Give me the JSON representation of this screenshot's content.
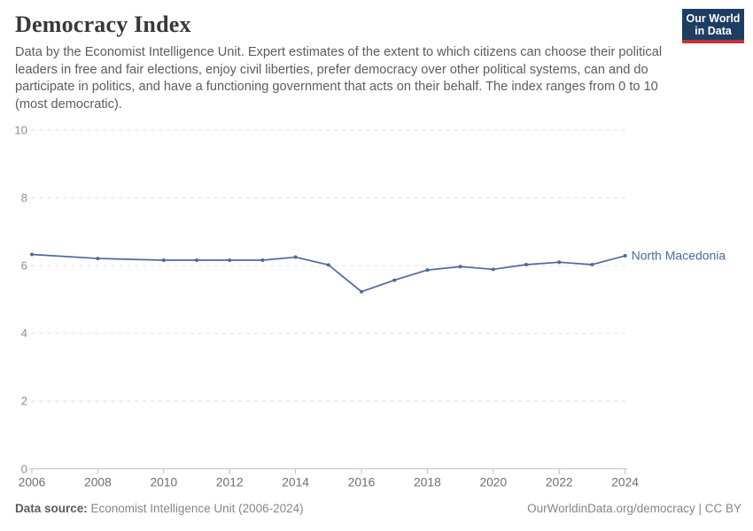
{
  "header": {
    "title": "Democracy Index",
    "subtitle": "Data by the Economist Intelligence Unit. Expert estimates of the extent to which citizens can choose their political leaders in free and fair elections, enjoy civil liberties, prefer democracy over other political systems, can and do participate in politics, and have a functioning government that acts on their behalf. The index ranges from 0 to 10 (most democratic).",
    "logo": {
      "line1": "Our World",
      "line2": "in Data",
      "bg_color": "#1d3d63",
      "accent_color": "#c23335"
    }
  },
  "chart_data": {
    "type": "line",
    "title": "Democracy Index",
    "xlabel": "",
    "ylabel": "",
    "x": [
      2006,
      2008,
      2010,
      2011,
      2012,
      2013,
      2014,
      2015,
      2016,
      2017,
      2018,
      2019,
      2020,
      2021,
      2022,
      2023,
      2024
    ],
    "series": [
      {
        "name": "North Macedonia",
        "color": "#4C6A9C",
        "values": [
          6.33,
          6.21,
          6.16,
          6.16,
          6.16,
          6.16,
          6.25,
          6.02,
          5.23,
          5.57,
          5.87,
          5.97,
          5.89,
          6.03,
          6.1,
          6.03,
          6.29
        ]
      }
    ],
    "xlim": [
      2006,
      2024
    ],
    "ylim": [
      0,
      10
    ],
    "xticks": [
      2006,
      2008,
      2010,
      2012,
      2014,
      2016,
      2018,
      2020,
      2022,
      2024
    ],
    "yticks": [
      0,
      2,
      4,
      6,
      8,
      10
    ],
    "grid": true,
    "gridline_color": "#e2e2e2",
    "axis_color": "#bdbdbd",
    "tick_label_color_y": "#8c8c8c",
    "tick_label_color_x": "#6e6e6e",
    "legend_position": "end-of-line"
  },
  "footer": {
    "datasource_label": "Data source:",
    "datasource_value": " Economist Intelligence Unit (2006-2024)",
    "right_text": "OurWorldinData.org/democracy | CC BY"
  }
}
